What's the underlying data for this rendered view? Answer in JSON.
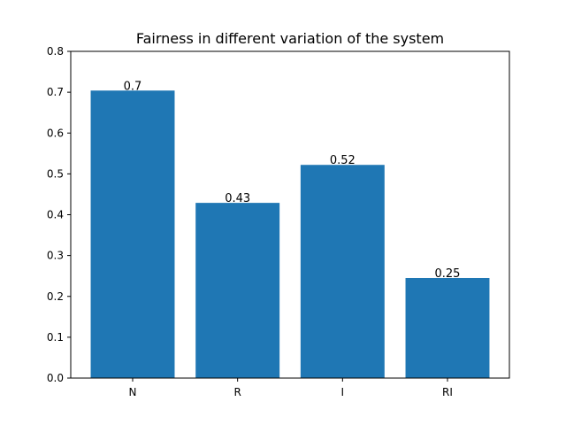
{
  "chart_data": {
    "type": "bar",
    "title": "Fairness in different variation of the system",
    "xlabel": "",
    "ylabel": "",
    "categories": [
      "N",
      "R",
      "I",
      "RI"
    ],
    "values": [
      0.704,
      0.429,
      0.522,
      0.245
    ],
    "data_labels": [
      "0.7",
      "0.43",
      "0.52",
      "0.25"
    ],
    "ylim": [
      0,
      0.8
    ],
    "yticks": [
      0.0,
      0.1,
      0.2,
      0.3,
      0.4,
      0.5,
      0.6,
      0.7,
      0.8
    ],
    "ytick_labels": [
      "0.0",
      "0.1",
      "0.2",
      "0.3",
      "0.4",
      "0.5",
      "0.6",
      "0.7",
      "0.8"
    ],
    "grid": false,
    "legend": "none",
    "bar_color": "#1f77b4"
  }
}
